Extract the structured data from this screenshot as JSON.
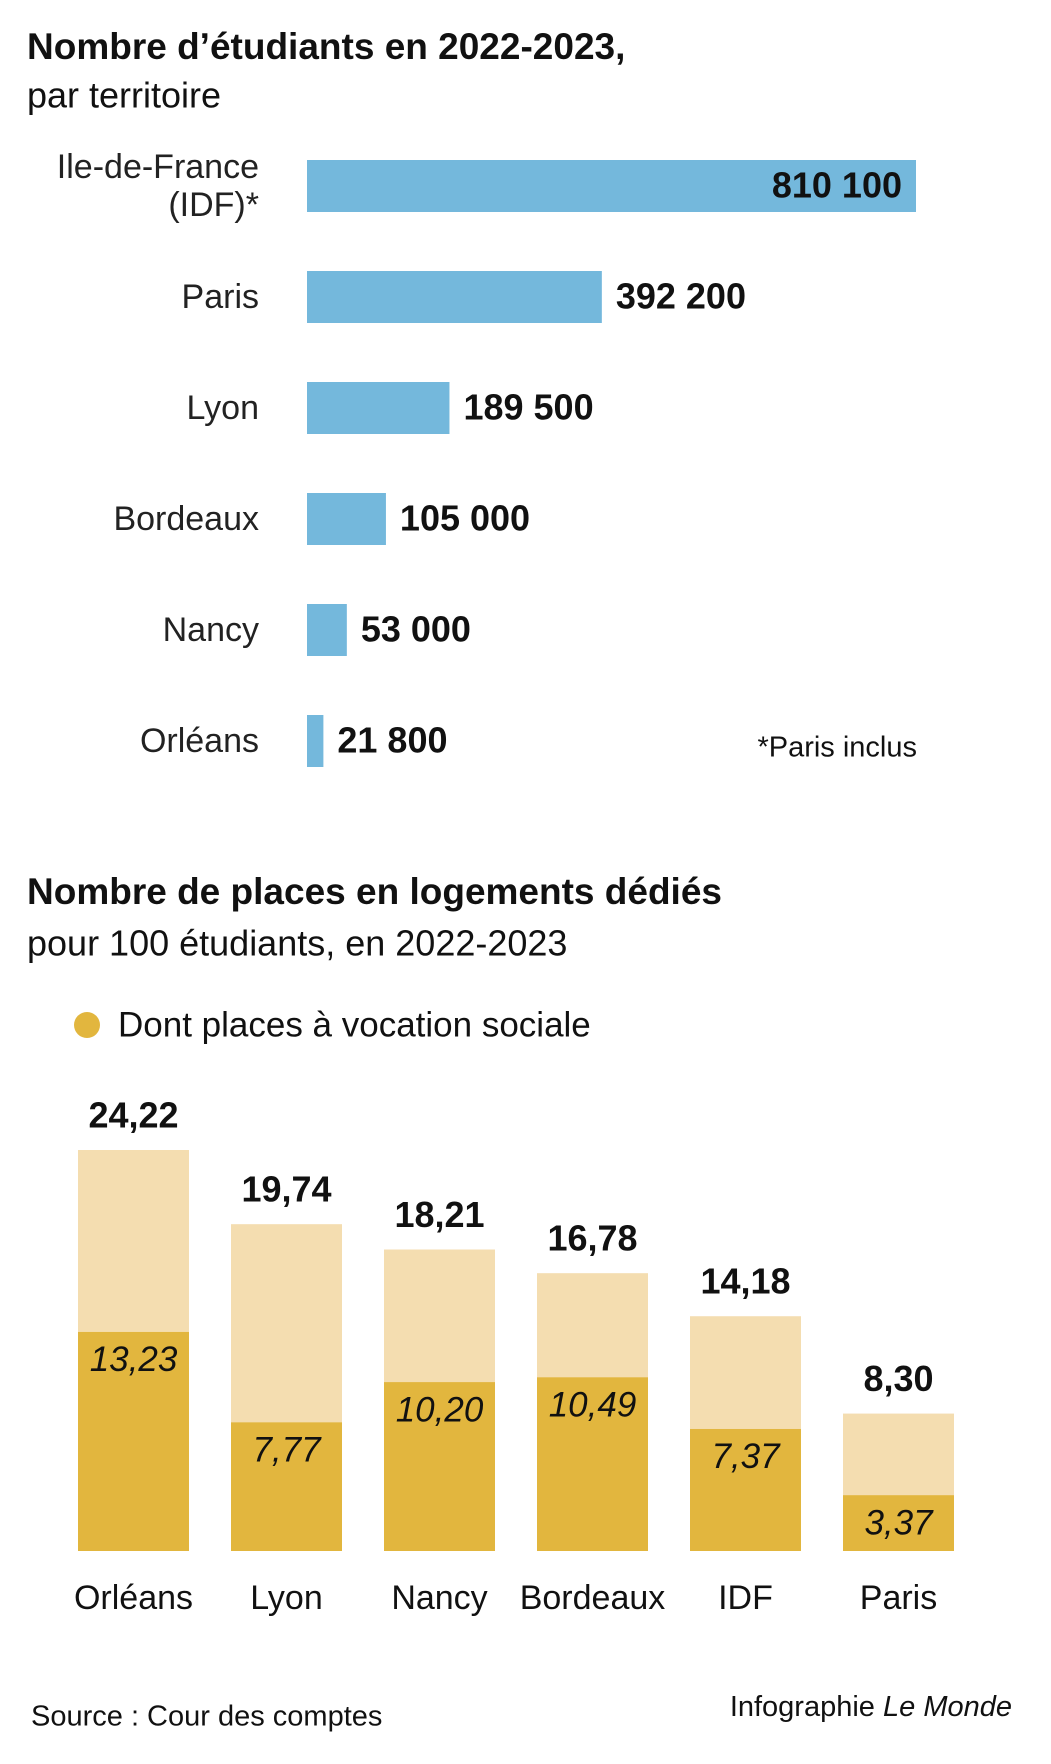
{
  "chart_data": [
    {
      "type": "hbar",
      "title": "Nombre d’étudiants en 2022-2023,",
      "subtitle": "par territoire",
      "categories": [
        "Ile-de-France (IDF)*",
        "Paris",
        "Lyon",
        "Bordeaux",
        "Nancy",
        "Orléans"
      ],
      "values": [
        810100,
        392200,
        189500,
        105000,
        53000,
        21800
      ],
      "value_labels": [
        "810 100",
        "392 200",
        "189 500",
        "105 000",
        "53 000",
        "21 800"
      ],
      "color": "#74b8dc",
      "annotation": "*Paris inclus"
    },
    {
      "type": "overlap-bar",
      "title": "Nombre de places en logements dédiés",
      "subtitle": "pour 100 étudiants, en 2022-2023",
      "categories": [
        "Orléans",
        "Lyon",
        "Nancy",
        "Bordeaux",
        "IDF",
        "Paris"
      ],
      "series": [
        {
          "color": "#f4ddb0",
          "values": [
            24.22,
            19.74,
            18.21,
            16.78,
            14.18,
            8.3
          ],
          "value_labels": [
            "24,22",
            "19,74",
            "18,21",
            "16,78",
            "14,18",
            "8,30"
          ]
        },
        {
          "name": "Dont places à vocation sociale",
          "color": "#e2b63e",
          "values": [
            13.23,
            7.77,
            10.2,
            10.49,
            7.37,
            3.37
          ],
          "value_labels": [
            "13,23",
            "7,77",
            "10,20",
            "10,49",
            "7,37",
            "3,37"
          ]
        }
      ],
      "legend": "top-left"
    }
  ],
  "footer": {
    "source": "Source : Cour des comptes",
    "credit": "Infographie",
    "credit_brand": "Le Monde"
  }
}
